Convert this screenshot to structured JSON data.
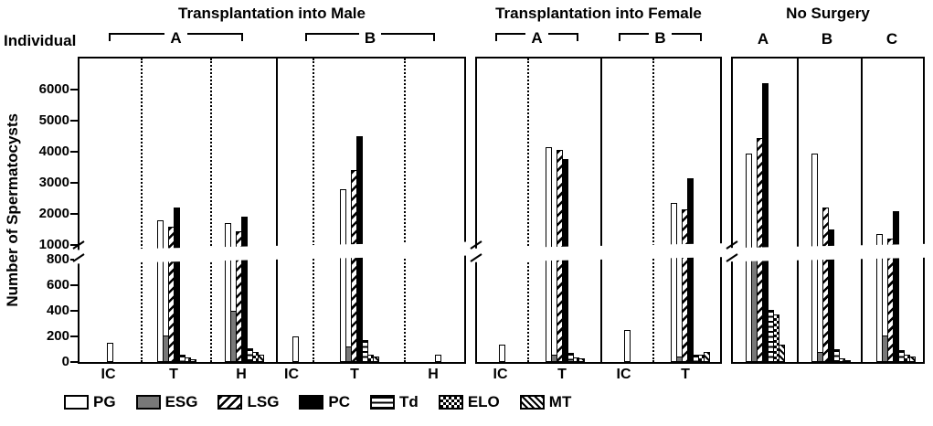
{
  "header": {
    "individual_label": "Individual"
  },
  "legend": {
    "items": [
      {
        "label": "PG",
        "pattern": "open"
      },
      {
        "label": "ESG",
        "pattern": "solid-gray"
      },
      {
        "label": "LSG",
        "pattern": "diagonal-hatch"
      },
      {
        "label": "PC",
        "pattern": "solid-black"
      },
      {
        "label": "Td",
        "pattern": "horizontal-lines"
      },
      {
        "label": "ELO",
        "pattern": "checkerboard"
      },
      {
        "label": "MT",
        "pattern": "reverse-diagonal-hatch"
      }
    ]
  },
  "chart_data": {
    "type": "bar",
    "title": "",
    "xlabel": "",
    "ylabel": "Number of Spermatocysts",
    "y_axis": {
      "lower_ticks": [
        0,
        200,
        400,
        600,
        800
      ],
      "upper_ticks": [
        1000,
        2000,
        3000,
        4000,
        5000,
        6000
      ],
      "axis_break_between": [
        800,
        1000
      ]
    },
    "series_names": [
      "PG",
      "ESG",
      "LSG",
      "PC",
      "Td",
      "ELO",
      "MT"
    ],
    "groups": [
      {
        "title": "Transplantation into Male",
        "header_style": "bracket",
        "individuals": [
          {
            "label": "A",
            "sections": [
              {
                "x": "IC",
                "values": [
                  150,
                  0,
                  0,
                  0,
                  0,
                  0,
                  0
                ]
              },
              {
                "x": "T",
                "values": [
                  1800,
                  210,
                  1600,
                  2200,
                  60,
                  35,
                  20
                ]
              },
              {
                "x": "H",
                "values": [
                  1700,
                  400,
                  1450,
                  1900,
                  105,
                  80,
                  60
                ]
              }
            ]
          },
          {
            "label": "B",
            "sections": [
              {
                "x": "IC",
                "values": [
                  200,
                  0,
                  0,
                  0,
                  0,
                  0,
                  0
                ]
              },
              {
                "x": "T",
                "values": [
                  2800,
                  120,
                  3400,
                  4500,
                  170,
                  60,
                  45
                ]
              },
              {
                "x": "H",
                "values": [
                  60,
                  0,
                  0,
                  0,
                  0,
                  0,
                  0
                ]
              }
            ]
          }
        ]
      },
      {
        "title": "Transplantation into Female",
        "header_style": "bracket",
        "individuals": [
          {
            "label": "A",
            "sections": [
              {
                "x": "IC",
                "values": [
                  135,
                  0,
                  0,
                  0,
                  0,
                  0,
                  0
                ]
              },
              {
                "x": "T",
                "values": [
                  4150,
                  60,
                  4050,
                  3750,
                  70,
                  35,
                  25
                ]
              }
            ]
          },
          {
            "label": "B",
            "sections": [
              {
                "x": "IC",
                "values": [
                  250,
                  0,
                  0,
                  0,
                  0,
                  0,
                  0
                ]
              },
              {
                "x": "T",
                "values": [
                  2350,
                  40,
                  2150,
                  3150,
                  55,
                  60,
                  75
                ]
              }
            ]
          }
        ]
      },
      {
        "title": "No Surgery",
        "header_style": "plain",
        "individuals": [
          {
            "label": "A",
            "sections": [
              {
                "x": "",
                "values": [
                  3950,
                  800,
                  4450,
                  6200,
                  410,
                  370,
                  135
                ]
              }
            ]
          },
          {
            "label": "B",
            "sections": [
              {
                "x": "",
                "values": [
                  3950,
                  80,
                  2200,
                  1500,
                  100,
                  30,
                  15
                ]
              }
            ]
          },
          {
            "label": "C",
            "sections": [
              {
                "x": "",
                "values": [
                  1350,
                  210,
                  1200,
                  2100,
                  90,
                  55,
                  45
                ]
              }
            ]
          }
        ]
      }
    ]
  }
}
